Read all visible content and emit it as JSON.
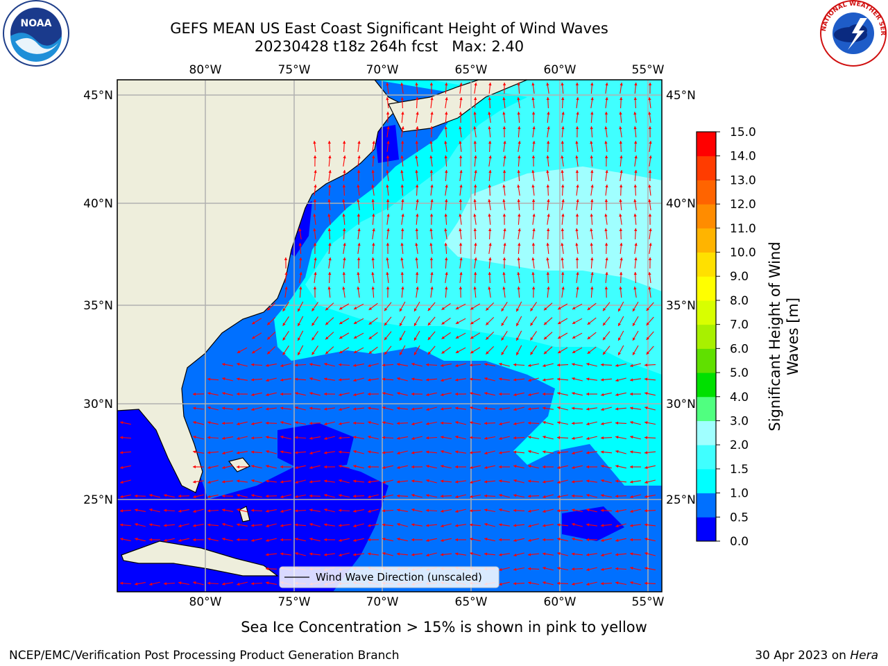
{
  "title": {
    "line1": "GEFS MEAN US East Coast Significant Height of Wind Waves",
    "line2": "20230428 t18z 264h fcst   Max: 2.40"
  },
  "logos": {
    "left_text": "NOAA",
    "right_text": "NATIONAL WEATHER SERVICE"
  },
  "map": {
    "lon_labels": [
      "80°W",
      "75°W",
      "70°W",
      "65°W",
      "60°W",
      "55°W"
    ],
    "lat_labels": [
      "45°N",
      "40°N",
      "35°N",
      "30°N",
      "25°N"
    ],
    "legend_label": "Wind Wave Direction (unscaled)",
    "colors": {
      "land": "#eeeedc",
      "arrow": "#ff0000",
      "grid": "#b0b0b0"
    }
  },
  "colorbar": {
    "label_line1": "Significant Height of Wind",
    "label_line2": "Waves [m]",
    "ticks": [
      "0.0",
      "0.5",
      "1.0",
      "1.5",
      "2.0",
      "3.0",
      "4.0",
      "5.0",
      "6.0",
      "7.0",
      "8.0",
      "9.0",
      "10.0",
      "11.0",
      "12.0",
      "13.0",
      "14.0",
      "15.0"
    ],
    "colors": [
      "#0000ff",
      "#0070ff",
      "#00ffff",
      "#40ffff",
      "#a0ffff",
      "#50ff80",
      "#00e000",
      "#60e000",
      "#a8f000",
      "#d8ff00",
      "#ffff00",
      "#ffe000",
      "#ffb400",
      "#ff8c00",
      "#ff6400",
      "#ff3c00",
      "#ff0000"
    ]
  },
  "footer": {
    "note": "Sea Ice Concentration > 15% is shown in pink to yellow",
    "credit": "NCEP/EMC/Verification Post Processing Product Generation Branch",
    "date": "30 Apr 2023 on ",
    "machine": "Hera"
  }
}
